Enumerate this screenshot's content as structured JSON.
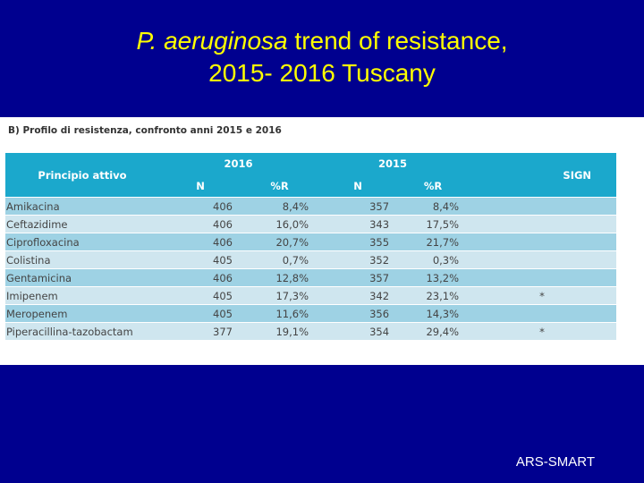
{
  "slide": {
    "title_italic": "P. aeruginosa",
    "title_rest": " trend of resistance,",
    "title_line2": "2015- 2016 Tuscany",
    "footer": "ARS-SMART"
  },
  "table": {
    "subtitle": "B) Profilo di resistenza, confronto anni 2015 e 2016",
    "header_drug": "Principio attivo",
    "year_2016": "2016",
    "year_2015": "2015",
    "header_sign": "SIGN",
    "col_n": "N",
    "col_r": "%R",
    "rows": [
      {
        "drug": "Amikacina",
        "n2016": "406",
        "r2016": "8,4%",
        "n2015": "357",
        "r2015": "8,4%",
        "sign": ""
      },
      {
        "drug": "Ceftazidime",
        "n2016": "406",
        "r2016": "16,0%",
        "n2015": "343",
        "r2015": "17,5%",
        "sign": ""
      },
      {
        "drug": "Ciprofloxacina",
        "n2016": "406",
        "r2016": "20,7%",
        "n2015": "355",
        "r2015": "21,7%",
        "sign": ""
      },
      {
        "drug": "Colistina",
        "n2016": "405",
        "r2016": "0,7%",
        "n2015": "352",
        "r2015": "0,3%",
        "sign": ""
      },
      {
        "drug": "Gentamicina",
        "n2016": "406",
        "r2016": "12,8%",
        "n2015": "357",
        "r2015": "13,2%",
        "sign": ""
      },
      {
        "drug": "Imipenem",
        "n2016": "405",
        "r2016": "17,3%",
        "n2015": "342",
        "r2015": "23,1%",
        "sign": "*"
      },
      {
        "drug": "Meropenem",
        "n2016": "405",
        "r2016": "11,6%",
        "n2015": "356",
        "r2015": "14,3%",
        "sign": ""
      },
      {
        "drug": "Piperacillina-tazobactam",
        "n2016": "377",
        "r2016": "19,1%",
        "n2015": "354",
        "r2015": "29,4%",
        "sign": "*"
      }
    ]
  }
}
